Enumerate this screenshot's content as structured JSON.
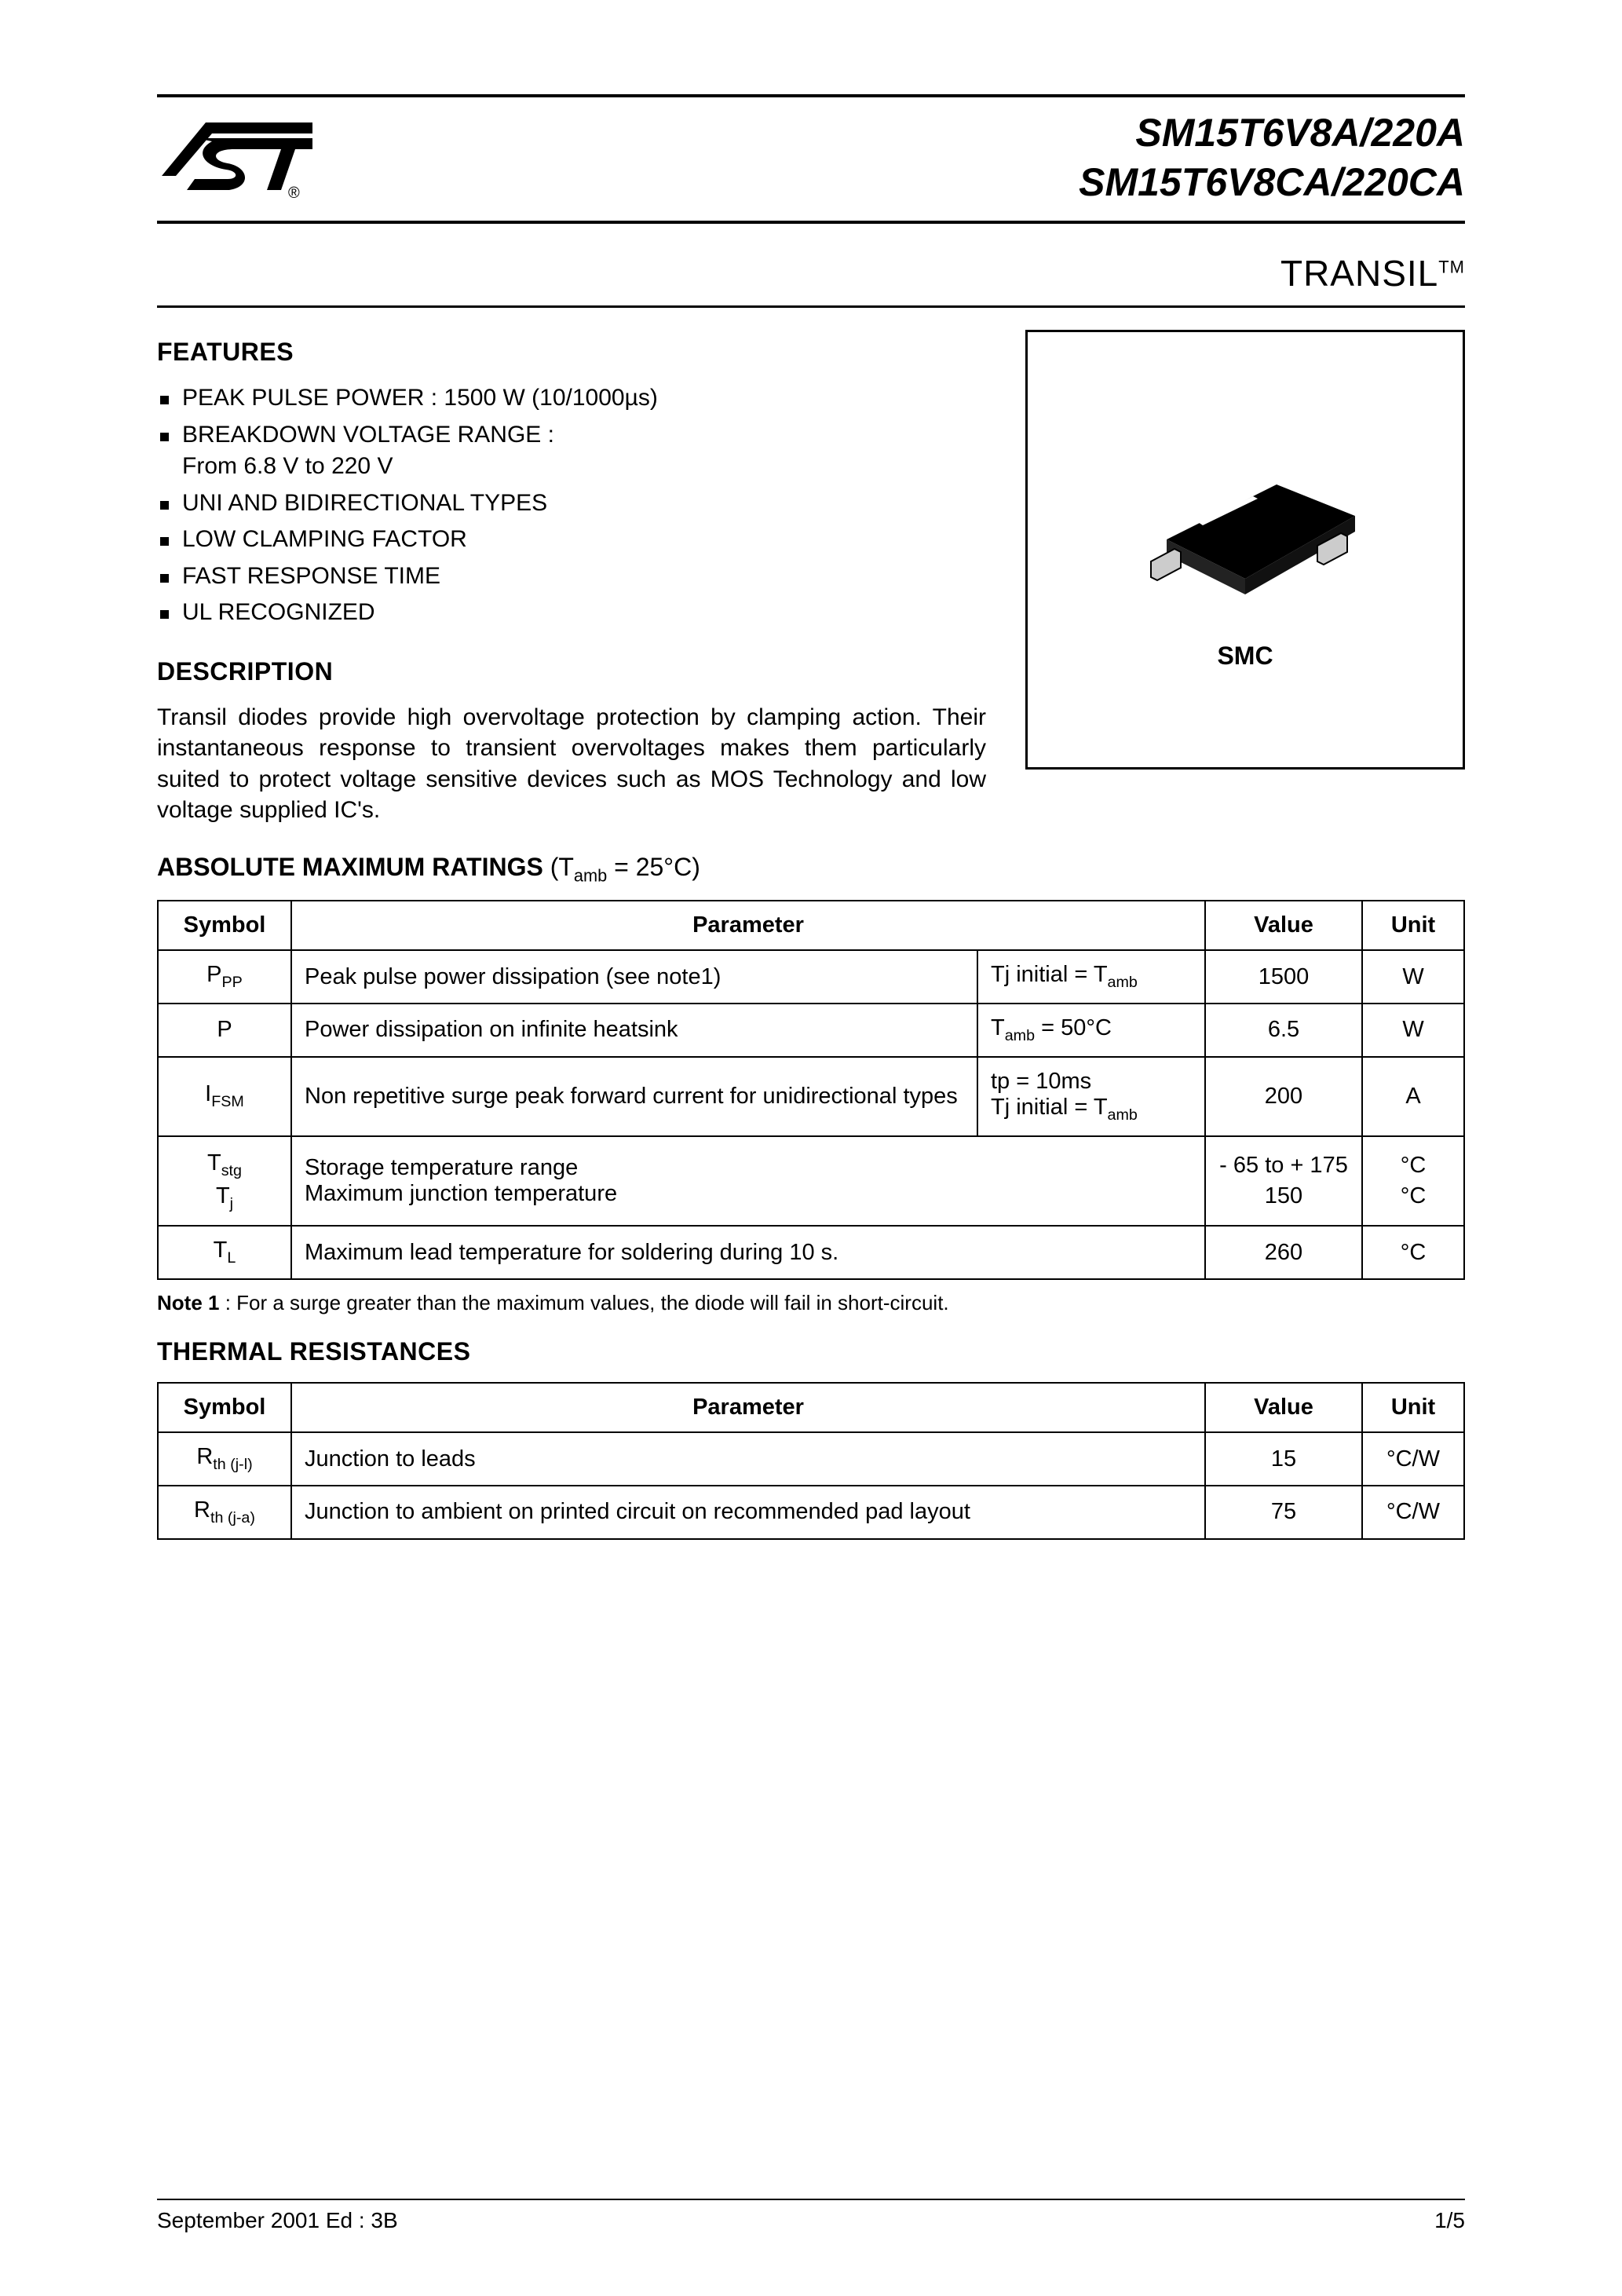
{
  "header": {
    "part1": "SM15T6V8A/220A",
    "part2": "SM15T6V8CA/220CA",
    "subtitle": "TRANSIL",
    "subtitle_tm": "TM"
  },
  "features": {
    "heading": "FEATURES",
    "items": [
      "PEAK PULSE POWER : 1500 W  (10/1000µs)",
      "BREAKDOWN VOLTAGE RANGE :\nFrom 6.8 V to 220 V",
      "UNI AND BIDIRECTIONAL TYPES",
      "LOW CLAMPING FACTOR",
      "FAST RESPONSE TIME",
      "UL RECOGNIZED"
    ]
  },
  "description": {
    "heading": "DESCRIPTION",
    "text": "Transil diodes provide high overvoltage protection by clamping action. Their instantaneous response to transient overvoltages makes them particularly suited to protect voltage sensitive devices such as MOS Technology and low voltage supplied IC's."
  },
  "package": {
    "label": "SMC"
  },
  "ratings": {
    "heading_main": "ABSOLUTE MAXIMUM RATINGS ",
    "heading_cond": "(Tamb = 25°C)",
    "headers": {
      "symbol": "Symbol",
      "parameter": "Parameter",
      "value": "Value",
      "unit": "Unit"
    },
    "rows": [
      {
        "symbol_html": "P<span class=\"sub\">PP</span>",
        "parameter": "Peak pulse power dissipation  (see note1)",
        "condition_html": "Tj initial = T<span class=\"sub\">amb</span>",
        "value": "1500",
        "unit": "W"
      },
      {
        "symbol_html": "P",
        "parameter": "Power dissipation on infinite heatsink",
        "condition_html": "T<span class=\"sub\">amb</span> = 50°C",
        "value": "6.5",
        "unit": "W"
      },
      {
        "symbol_html": "I<span class=\"sub\">FSM</span>",
        "parameter": "Non repetitive surge peak forward current for unidirectional types",
        "condition_html": "tp = 10ms<br>Tj initial = T<span class=\"sub\">amb</span>",
        "value": "200",
        "unit": "A"
      },
      {
        "symbol_html": "<div class=\"stack\"><span>T<span class=\"sub\">stg</span></span><span>T<span class=\"sub\">j</span></span></div>",
        "parameter": "Storage temperature range\nMaximum junction temperature",
        "condition_html": "",
        "value_html": "<div class=\"stack\"><span>- 65 to + 175</span><span>150</span></div>",
        "unit_html": "<div class=\"stack\"><span>°C</span><span>°C</span></div>",
        "span_cond": true
      },
      {
        "symbol_html": "T<span class=\"sub\">L</span>",
        "parameter": "Maximum lead temperature for soldering during 10 s.",
        "condition_html": "",
        "value": "260",
        "unit": "°C",
        "span_cond": true
      }
    ],
    "note_label": "Note 1",
    "note_text": " : For a surge greater than the maximum values, the diode will fail in short-circuit."
  },
  "thermal": {
    "heading": "THERMAL RESISTANCES",
    "headers": {
      "symbol": "Symbol",
      "parameter": "Parameter",
      "value": "Value",
      "unit": "Unit"
    },
    "rows": [
      {
        "symbol_html": "R<span class=\"sub\">th (j-l)</span>",
        "parameter": "Junction to leads",
        "value": "15",
        "unit": "°C/W"
      },
      {
        "symbol_html": "R<span class=\"sub\">th (j-a)</span>",
        "parameter": "Junction to ambient on printed circuit on recommended pad layout",
        "value": "75",
        "unit": "°C/W"
      }
    ]
  },
  "footer": {
    "left": "September 2001  Ed : 3B",
    "right": "1/5"
  },
  "colors": {
    "fg": "#000000",
    "bg": "#ffffff"
  }
}
